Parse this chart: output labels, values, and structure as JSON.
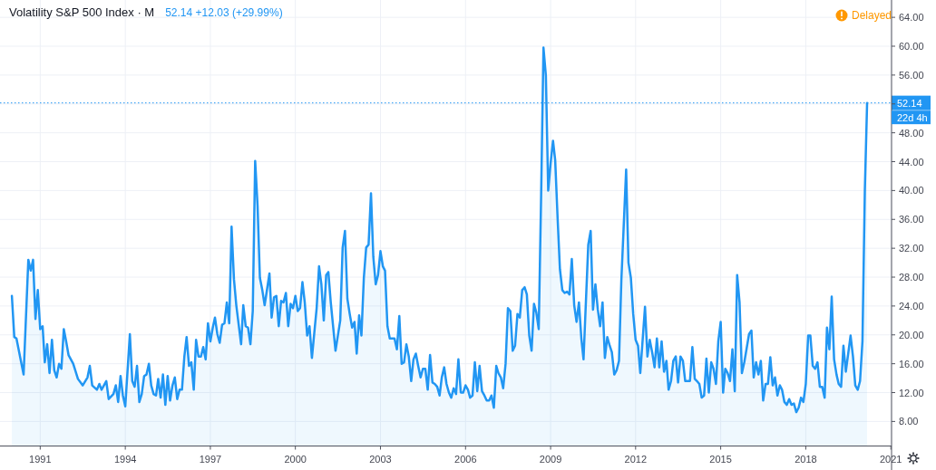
{
  "chart_data": {
    "type": "area",
    "title": "Volatility S&P 500 Index · M",
    "subtitle": "52.14 +12.03 (+29.99%)",
    "x": [
      "1990-01",
      "1990-02",
      "1990-03",
      "1990-06",
      "1990-08",
      "1990-09",
      "1990-10",
      "1990-11",
      "1990-12",
      "1991-01",
      "1991-02",
      "1991-03",
      "1991-04",
      "1991-05",
      "1991-06",
      "1991-07",
      "1991-08",
      "1991-09",
      "1991-10",
      "1991-11",
      "1991-12",
      "1992-01",
      "1992-03",
      "1992-05",
      "1992-07",
      "1992-09",
      "1992-10",
      "1992-11",
      "1993-01",
      "1993-02",
      "1993-03",
      "1993-05",
      "1993-06",
      "1993-08",
      "1993-09",
      "1993-10",
      "1993-11",
      "1993-12",
      "1994-01",
      "1994-03",
      "1994-04",
      "1994-05",
      "1994-06",
      "1994-07",
      "1994-08",
      "1994-09",
      "1994-10",
      "1994-11",
      "1994-12",
      "1995-01",
      "1995-02",
      "1995-03",
      "1995-04",
      "1995-05",
      "1995-06",
      "1995-07",
      "1995-08",
      "1995-09",
      "1995-10",
      "1995-11",
      "1995-12",
      "1996-01",
      "1996-02",
      "1996-03",
      "1996-04",
      "1996-05",
      "1996-06",
      "1996-07",
      "1996-08",
      "1996-09",
      "1996-10",
      "1996-11",
      "1996-12",
      "1997-01",
      "1997-02",
      "1997-03",
      "1997-04",
      "1997-05",
      "1997-06",
      "1997-07",
      "1997-08",
      "1997-09",
      "1997-10",
      "1997-11",
      "1997-12",
      "1998-02",
      "1998-03",
      "1998-04",
      "1998-05",
      "1998-06",
      "1998-07",
      "1998-08",
      "1998-09",
      "1998-10",
      "1998-11",
      "1998-12",
      "1999-02",
      "1999-03",
      "1999-04",
      "1999-05",
      "1999-06",
      "1999-07",
      "1999-08",
      "1999-09",
      "1999-10",
      "1999-11",
      "1999-12",
      "2000-01",
      "2000-02",
      "2000-03",
      "2000-04",
      "2000-05",
      "2000-06",
      "2000-07",
      "2000-08",
      "2000-09",
      "2000-10",
      "2000-11",
      "2000-12",
      "2001-01",
      "2001-02",
      "2001-03",
      "2001-04",
      "2001-06",
      "2001-08",
      "2001-09",
      "2001-10",
      "2001-11",
      "2001-12",
      "2002-01",
      "2002-02",
      "2002-03",
      "2002-04",
      "2002-05",
      "2002-06",
      "2002-07",
      "2002-08",
      "2002-09",
      "2002-10",
      "2002-11",
      "2002-12",
      "2003-01",
      "2003-02",
      "2003-03",
      "2003-04",
      "2003-05",
      "2003-07",
      "2003-08",
      "2003-09",
      "2003-10",
      "2003-11",
      "2003-12",
      "2004-01",
      "2004-02",
      "2004-03",
      "2004-04",
      "2004-05",
      "2004-06",
      "2004-07",
      "2004-08",
      "2004-09",
      "2004-10",
      "2004-11",
      "2004-12",
      "2005-01",
      "2005-02",
      "2005-03",
      "2005-04",
      "2005-05",
      "2005-06",
      "2005-07",
      "2005-08",
      "2005-09",
      "2005-10",
      "2005-11",
      "2005-12",
      "2006-01",
      "2006-02",
      "2006-03",
      "2006-04",
      "2006-05",
      "2006-06",
      "2006-07",
      "2006-08",
      "2006-09",
      "2006-10",
      "2006-11",
      "2006-12",
      "2007-01",
      "2007-02",
      "2007-03",
      "2007-04",
      "2007-05",
      "2007-06",
      "2007-07",
      "2007-08",
      "2007-09",
      "2007-10",
      "2007-11",
      "2007-12",
      "2008-01",
      "2008-02",
      "2008-03",
      "2008-04",
      "2008-05",
      "2008-06",
      "2008-07",
      "2008-08",
      "2008-09",
      "2008-10",
      "2008-11",
      "2008-12",
      "2009-01",
      "2009-02",
      "2009-03",
      "2009-04",
      "2009-05",
      "2009-06",
      "2009-07",
      "2009-08",
      "2009-09",
      "2009-10",
      "2009-11",
      "2009-12",
      "2010-01",
      "2010-02",
      "2010-03",
      "2010-05",
      "2010-06",
      "2010-07",
      "2010-08",
      "2010-09",
      "2010-10",
      "2010-11",
      "2010-12",
      "2011-01",
      "2011-02",
      "2011-03",
      "2011-04",
      "2011-05",
      "2011-06",
      "2011-07",
      "2011-09",
      "2011-10",
      "2011-11",
      "2011-12",
      "2012-01",
      "2012-02",
      "2012-03",
      "2012-05",
      "2012-06",
      "2012-07",
      "2012-08",
      "2012-09",
      "2012-10",
      "2012-11",
      "2012-12",
      "2013-01",
      "2013-02",
      "2013-03",
      "2013-04",
      "2013-05",
      "2013-06",
      "2013-07",
      "2013-08",
      "2013-09",
      "2013-10",
      "2013-12",
      "2014-01",
      "2014-02",
      "2014-03",
      "2014-04",
      "2014-05",
      "2014-06",
      "2014-07",
      "2014-08",
      "2014-09",
      "2014-10",
      "2014-11",
      "2014-12",
      "2015-01",
      "2015-02",
      "2015-03",
      "2015-04",
      "2015-05",
      "2015-06",
      "2015-07",
      "2015-08",
      "2015-09",
      "2015-10",
      "2015-11",
      "2016-01",
      "2016-02",
      "2016-03",
      "2016-04",
      "2016-05",
      "2016-06",
      "2016-07",
      "2016-08",
      "2016-09",
      "2016-10",
      "2016-11",
      "2016-12",
      "2017-01",
      "2017-02",
      "2017-03",
      "2017-04",
      "2017-05",
      "2017-06",
      "2017-07",
      "2017-08",
      "2017-09",
      "2017-10",
      "2017-11",
      "2017-12",
      "2018-01",
      "2018-02",
      "2018-03",
      "2018-04",
      "2018-05",
      "2018-06",
      "2018-07",
      "2018-08",
      "2018-09",
      "2018-10",
      "2018-11",
      "2018-12",
      "2019-01",
      "2019-02",
      "2019-03",
      "2019-04",
      "2019-05",
      "2019-06",
      "2019-08",
      "2019-09",
      "2019-10",
      "2019-11",
      "2019-12",
      "2020-01",
      "2020-02",
      "2020-03"
    ],
    "values": [
      25.4,
      19.7,
      19.5,
      14.5,
      30.4,
      28.9,
      30.4,
      22.2,
      26.2,
      20.8,
      21.2,
      16.2,
      18.7,
      14.7,
      19.3,
      15.1,
      14.1,
      16.0,
      15.3,
      20.8,
      19.1,
      17.2,
      16.0,
      13.9,
      13.0,
      14.1,
      15.7,
      13.0,
      12.4,
      13.2,
      12.4,
      13.6,
      11.1,
      11.8,
      13.0,
      10.7,
      14.3,
      11.6,
      10.1,
      20.1,
      13.6,
      12.8,
      15.7,
      10.7,
      11.8,
      14.3,
      14.5,
      16.0,
      13.0,
      11.8,
      11.6,
      13.9,
      11.3,
      14.5,
      10.3,
      14.3,
      10.9,
      13.0,
      14.1,
      11.1,
      12.4,
      12.4,
      17.0,
      19.7,
      15.7,
      16.2,
      12.4,
      19.3,
      17.0,
      17.0,
      18.3,
      16.6,
      21.6,
      19.1,
      21.0,
      22.4,
      20.1,
      18.9,
      21.4,
      21.6,
      24.5,
      21.6,
      35.0,
      27.7,
      24.1,
      18.7,
      24.1,
      21.2,
      21.0,
      18.7,
      23.3,
      44.1,
      37.9,
      27.9,
      26.2,
      24.1,
      28.5,
      22.4,
      25.2,
      25.4,
      21.2,
      24.7,
      24.5,
      25.8,
      21.2,
      24.3,
      23.7,
      25.4,
      23.3,
      23.7,
      27.3,
      24.5,
      19.9,
      21.2,
      16.8,
      20.3,
      23.7,
      29.5,
      27.0,
      22.0,
      28.3,
      28.7,
      24.5,
      17.8,
      22.0,
      32.1,
      34.4,
      25.0,
      22.9,
      21.0,
      21.8,
      17.4,
      22.7,
      19.9,
      27.9,
      32.1,
      32.5,
      39.6,
      30.8,
      27.0,
      28.3,
      31.6,
      29.5,
      28.9,
      21.2,
      19.5,
      19.5,
      18.0,
      22.6,
      16.0,
      16.2,
      18.7,
      17.0,
      13.6,
      16.6,
      17.4,
      15.7,
      14.1,
      15.3,
      15.3,
      12.4,
      17.2,
      13.4,
      13.2,
      12.8,
      11.6,
      14.1,
      15.5,
      13.2,
      12.0,
      11.3,
      12.6,
      11.8,
      16.6,
      12.0,
      12.0,
      13.0,
      12.4,
      11.3,
      11.6,
      16.2,
      12.2,
      15.7,
      12.2,
      11.6,
      10.9,
      10.9,
      11.6,
      9.9,
      15.7,
      14.7,
      14.1,
      12.6,
      16.0,
      23.7,
      23.3,
      17.8,
      18.5,
      22.9,
      22.4,
      26.2,
      26.6,
      25.6,
      19.9,
      17.8,
      24.3,
      23.1,
      20.8,
      39.4,
      59.8,
      55.9,
      40.0,
      43.8,
      46.9,
      44.2,
      36.2,
      29.1,
      26.2,
      25.8,
      26.0,
      25.6,
      30.5,
      24.1,
      21.8,
      24.5,
      19.5,
      16.6,
      32.5,
      34.4,
      23.5,
      27.0,
      23.5,
      21.2,
      24.5,
      16.8,
      19.7,
      18.5,
      17.6,
      14.5,
      15.1,
      16.4,
      27.5,
      42.9,
      30.0,
      27.9,
      22.9,
      19.3,
      18.5,
      14.7,
      23.9,
      17.0,
      19.3,
      17.6,
      15.5,
      19.5,
      15.5,
      19.1,
      14.9,
      16.4,
      12.4,
      13.6,
      16.4,
      17.0,
      13.4,
      17.0,
      16.4,
      13.6,
      13.6,
      18.3,
      13.9,
      13.6,
      13.2,
      11.3,
      11.6,
      16.7,
      12.0,
      16.2,
      15.3,
      13.2,
      19.1,
      21.8,
      12.0,
      15.3,
      14.7,
      13.6,
      18.0,
      12.2,
      28.3,
      24.5,
      14.7,
      16.2,
      20.1,
      20.6,
      14.1,
      16.2,
      14.5,
      16.4,
      10.9,
      13.2,
      13.2,
      16.9,
      13.0,
      14.1,
      11.6,
      13.0,
      12.4,
      10.7,
      10.3,
      11.1,
      10.3,
      10.5,
      9.3,
      9.9,
      11.3,
      10.7,
      13.2,
      19.9,
      19.9,
      15.7,
      15.3,
      16.2,
      12.8,
      12.8,
      11.3,
      21.0,
      18.0,
      25.3,
      16.6,
      14.5,
      13.2,
      12.8,
      18.5,
      14.9,
      19.9,
      17.0,
      13.0,
      12.4,
      13.6,
      19.1,
      40.1,
      52.14
    ],
    "color": "#2196f3",
    "xlim": [
      "1989-08-01",
      "2021-01-10"
    ],
    "ylim": [
      4.6,
      66.4
    ],
    "xticks": [
      "1991",
      "1994",
      "1997",
      "2000",
      "2003",
      "2006",
      "2009",
      "2012",
      "2015",
      "2018",
      "2021"
    ],
    "yticks": [
      {
        "value": 8,
        "label": "8.00"
      },
      {
        "value": 12,
        "label": "12.00"
      },
      {
        "value": 16,
        "label": "16.00"
      },
      {
        "value": 20,
        "label": "20.00"
      },
      {
        "value": 24,
        "label": "24.00"
      },
      {
        "value": 28,
        "label": "28.00"
      },
      {
        "value": 32,
        "label": "32.00"
      },
      {
        "value": 36,
        "label": "36.00"
      },
      {
        "value": 40,
        "label": "40.00"
      },
      {
        "value": 44,
        "label": "44.00"
      },
      {
        "value": 48,
        "label": "48.00"
      },
      {
        "value": 52,
        "label": null
      },
      {
        "value": 56,
        "label": "56.00"
      },
      {
        "value": 60,
        "label": "60.00"
      },
      {
        "value": 64,
        "label": "64.00"
      }
    ],
    "grid": true,
    "ref_lines": [
      {
        "axis": "y",
        "value": 52.14,
        "label": "52.14",
        "color": "#2196f3",
        "line_style": "dotted"
      }
    ],
    "annotations": [
      "Delayed",
      "22d 4h"
    ]
  }
}
